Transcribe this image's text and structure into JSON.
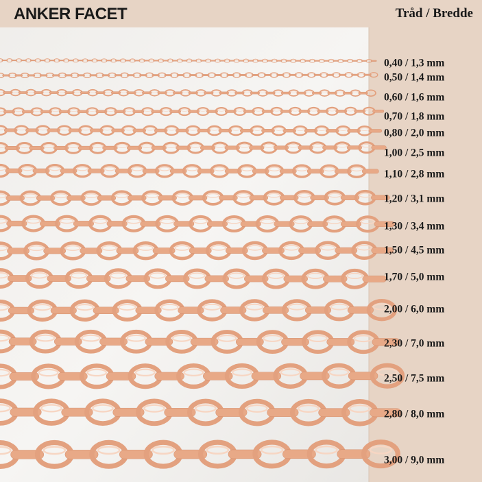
{
  "header": {
    "title": "ANKER FACET",
    "column": "Tråd / Bredde"
  },
  "sizes": [
    "0,40 / 1,3 mm",
    "0,50 / 1,4 mm",
    "0,60 / 1,6 mm",
    "0,70 / 1,8 mm",
    "0,80 / 2,0 mm",
    "1,00 / 2,5 mm",
    "1,10 / 2,8 mm",
    "1,20 / 3,1 mm",
    "1,30 / 3,4 mm",
    "1,50 / 4,5 mm",
    "1,70 / 5,0 mm",
    "2,00 / 6,0 mm",
    "2,30 / 7,0 mm",
    "2,50 / 7,5 mm",
    "2,80 / 8,0 mm",
    "3,00 / 9,0 mm"
  ]
}
